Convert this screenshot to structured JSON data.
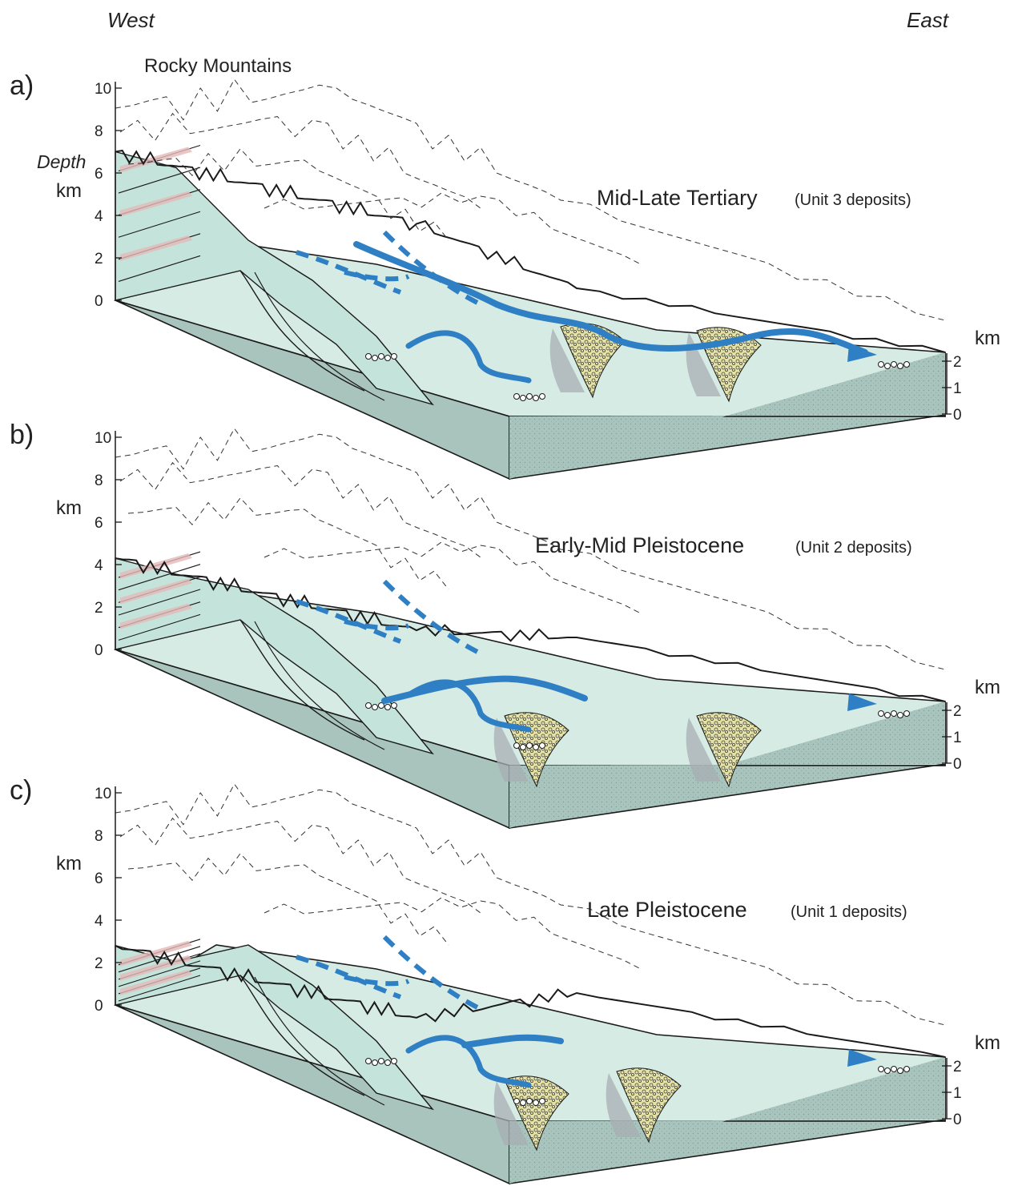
{
  "header": {
    "west": "West",
    "east": "East",
    "range_name": "Rocky Mountains"
  },
  "panels": [
    {
      "letter": "a)",
      "era": "Mid-Late Tertiary",
      "unit": "(Unit 3 deposits)",
      "left_axis_title": "Depth",
      "left_axis_unit": "km",
      "left_ticks": [
        "10",
        "8",
        "6",
        "4",
        "2",
        "0"
      ],
      "right_axis_unit": "km",
      "right_ticks": [
        "2",
        "1",
        "0"
      ],
      "ridge_height_km": 7
    },
    {
      "letter": "b)",
      "era": "Early-Mid Pleistocene",
      "unit": "(Unit 2 deposits)",
      "left_axis_unit": "km",
      "left_ticks": [
        "10",
        "8",
        "6",
        "4",
        "2",
        "0"
      ],
      "right_axis_unit": "km",
      "right_ticks": [
        "2",
        "1",
        "0"
      ],
      "ridge_height_km": 4.3
    },
    {
      "letter": "c)",
      "era": "Late Pleistocene",
      "unit": "(Unit 1 deposits)",
      "left_axis_unit": "km",
      "left_ticks": [
        "10",
        "8",
        "6",
        "4",
        "2",
        "0"
      ],
      "right_axis_unit": "km",
      "right_ticks": [
        "2",
        "1",
        "0"
      ],
      "ridge_height_km": 2.8
    }
  ],
  "colors": {
    "river": "#2f7fc4",
    "block_side": "#a9c4bd",
    "basin_fill": "#d6ebe4",
    "bedrock": "#c4e3da",
    "red_strata": "#e3b9b9",
    "gravel": "#e4e2a6",
    "shade": "#a8adb4",
    "line": "#1a1a1a"
  }
}
